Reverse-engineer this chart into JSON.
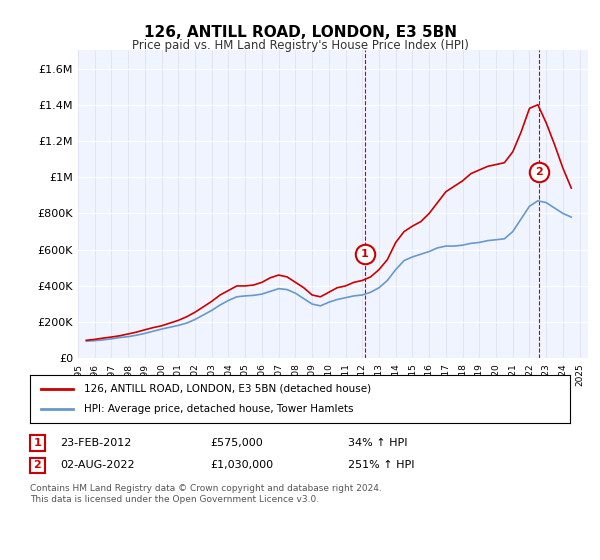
{
  "title": "126, ANTILL ROAD, LONDON, E3 5BN",
  "subtitle": "Price paid vs. HM Land Registry's House Price Index (HPI)",
  "ylabel_ticks": [
    "£0",
    "£200K",
    "£400K",
    "£600K",
    "£800K",
    "£1M",
    "£1.2M",
    "£1.4M",
    "£1.6M"
  ],
  "ytick_values": [
    0,
    200000,
    400000,
    600000,
    800000,
    1000000,
    1200000,
    1400000,
    1600000
  ],
  "ylim": [
    0,
    1700000
  ],
  "xlim_start": 1995.0,
  "xlim_end": 2025.5,
  "hpi_color": "#6699cc",
  "price_color": "#cc0000",
  "background_color": "#f0f4ff",
  "plot_bg": "#ffffff",
  "marker1_x": 2012.15,
  "marker1_y": 575000,
  "marker1_label": "1",
  "marker2_x": 2022.58,
  "marker2_y": 1030000,
  "marker2_label": "2",
  "legend_line1": "126, ANTILL ROAD, LONDON, E3 5BN (detached house)",
  "legend_line2": "HPI: Average price, detached house, Tower Hamlets",
  "table_row1": [
    "1",
    "23-FEB-2012",
    "£575,000",
    "34% ↑ HPI"
  ],
  "table_row2": [
    "2",
    "02-AUG-2022",
    "£1,030,000",
    "251% ↑ HPI"
  ],
  "footnote": "Contains HM Land Registry data © Crown copyright and database right 2024.\nThis data is licensed under the Open Government Licence v3.0.",
  "hpi_data_x": [
    1995.5,
    1996.0,
    1996.5,
    1997.0,
    1997.5,
    1998.0,
    1998.5,
    1999.0,
    1999.5,
    2000.0,
    2000.5,
    2001.0,
    2001.5,
    2002.0,
    2002.5,
    2003.0,
    2003.5,
    2004.0,
    2004.5,
    2005.0,
    2005.5,
    2006.0,
    2006.5,
    2007.0,
    2007.5,
    2008.0,
    2008.5,
    2009.0,
    2009.5,
    2010.0,
    2010.5,
    2011.0,
    2011.5,
    2012.0,
    2012.5,
    2013.0,
    2013.5,
    2014.0,
    2014.5,
    2015.0,
    2015.5,
    2016.0,
    2016.5,
    2017.0,
    2017.5,
    2018.0,
    2018.5,
    2019.0,
    2019.5,
    2020.0,
    2020.5,
    2021.0,
    2021.5,
    2022.0,
    2022.5,
    2023.0,
    2023.5,
    2024.0,
    2024.5
  ],
  "hpi_data_y": [
    95000,
    98000,
    102000,
    108000,
    115000,
    120000,
    128000,
    138000,
    150000,
    162000,
    172000,
    182000,
    195000,
    215000,
    240000,
    265000,
    295000,
    320000,
    340000,
    345000,
    348000,
    355000,
    370000,
    385000,
    380000,
    360000,
    330000,
    300000,
    290000,
    310000,
    325000,
    335000,
    345000,
    350000,
    365000,
    390000,
    430000,
    490000,
    540000,
    560000,
    575000,
    590000,
    610000,
    620000,
    620000,
    625000,
    635000,
    640000,
    650000,
    655000,
    660000,
    700000,
    770000,
    840000,
    870000,
    860000,
    830000,
    800000,
    780000
  ],
  "price_data_x": [
    1995.5,
    1996.0,
    1996.5,
    1997.0,
    1997.5,
    1998.0,
    1998.5,
    1999.0,
    1999.5,
    2000.0,
    2000.5,
    2001.0,
    2001.5,
    2002.0,
    2002.5,
    2003.0,
    2003.5,
    2004.0,
    2004.5,
    2005.0,
    2005.5,
    2006.0,
    2006.5,
    2007.0,
    2007.5,
    2008.0,
    2008.5,
    2009.0,
    2009.5,
    2010.0,
    2010.5,
    2011.0,
    2011.5,
    2012.0,
    2012.5,
    2013.0,
    2013.5,
    2014.0,
    2014.5,
    2015.0,
    2015.5,
    2016.0,
    2016.5,
    2017.0,
    2017.5,
    2018.0,
    2018.5,
    2019.0,
    2019.5,
    2020.0,
    2020.5,
    2021.0,
    2021.5,
    2022.0,
    2022.5,
    2023.0,
    2023.5,
    2024.0,
    2024.5
  ],
  "price_data_y": [
    100000,
    105000,
    112000,
    118000,
    125000,
    135000,
    145000,
    158000,
    170000,
    180000,
    195000,
    210000,
    230000,
    255000,
    285000,
    315000,
    350000,
    375000,
    400000,
    400000,
    405000,
    420000,
    445000,
    460000,
    450000,
    420000,
    390000,
    350000,
    340000,
    365000,
    390000,
    400000,
    420000,
    430000,
    450000,
    490000,
    545000,
    640000,
    700000,
    730000,
    755000,
    800000,
    860000,
    920000,
    950000,
    980000,
    1020000,
    1040000,
    1060000,
    1070000,
    1080000,
    1140000,
    1250000,
    1380000,
    1400000,
    1300000,
    1180000,
    1050000,
    940000
  ]
}
